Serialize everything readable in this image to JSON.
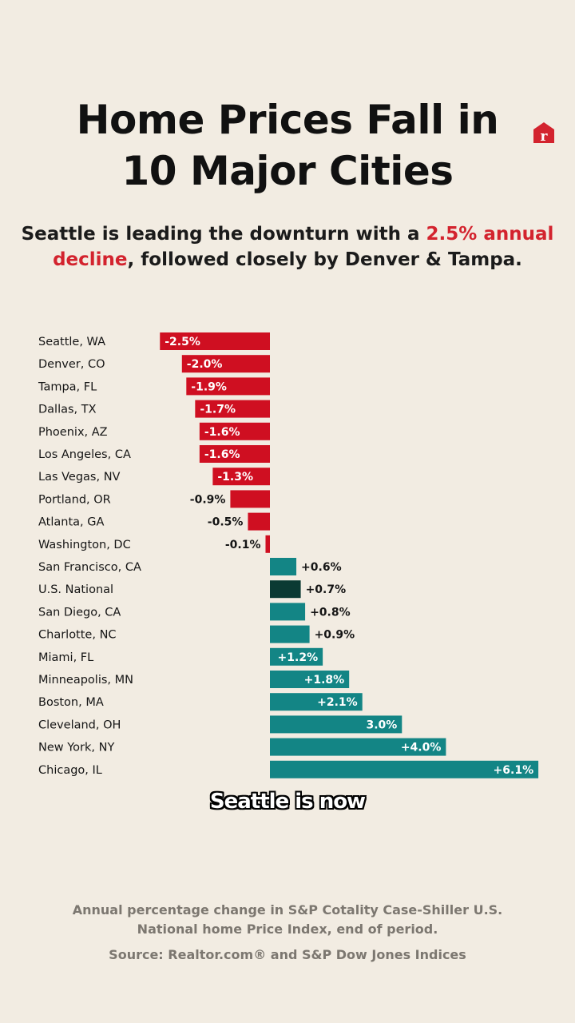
{
  "title": [
    "Home Prices Fall in",
    "10 Major Cities"
  ],
  "subtitle": {
    "before": "Seattle is leading the downturn with a ",
    "highlight": "2.5% annual decline",
    "after": ", followed closely by Denver & Tampa."
  },
  "logo_icon": "realtor-r-icon",
  "caption": "Seattle is now",
  "footnote": "Annual percentage change in S&P Cotality Case-Shiller U.S. National home Price Index, end of period.",
  "source": "Source: Realtor.com® and S&P Dow Jones Indices",
  "colors": {
    "negative": "#cf0f21",
    "positive": "#138585",
    "national": "#0b3a33",
    "highlight": "#d3232e"
  },
  "chart_data": {
    "type": "bar",
    "orientation": "horizontal",
    "categories": [
      "Seattle, WA",
      "Denver, CO",
      "Tampa, FL",
      "Dallas, TX",
      "Phoenix, AZ",
      "Los Angeles, CA",
      "Las Vegas, NV",
      "Portland, OR",
      "Atlanta, GA",
      "Washington, DC",
      "San Francisco, CA",
      "U.S. National",
      "San Diego, CA",
      "Charlotte, NC",
      "Miami, FL",
      "Minneapolis, MN",
      "Boston, MA",
      "Cleveland, OH",
      "New York, NY",
      "Chicago, IL"
    ],
    "values": [
      -2.5,
      -2.0,
      -1.9,
      -1.7,
      -1.6,
      -1.6,
      -1.3,
      -0.9,
      -0.5,
      -0.1,
      0.6,
      0.7,
      0.8,
      0.9,
      1.2,
      1.8,
      2.1,
      3.0,
      4.0,
      6.1
    ],
    "data_labels": [
      "-2.5%",
      "-2.0%",
      "-1.9%",
      "-1.7%",
      "-1.6%",
      "-1.6%",
      "-1.3%",
      "-0.9%",
      "-0.5%",
      "-0.1%",
      "+0.6%",
      "+0.7%",
      "+0.8%",
      "+0.9%",
      "+1.2%",
      "+1.8%",
      "+2.1%",
      "3.0%",
      "+4.0%",
      "+6.1%"
    ],
    "grid": false,
    "legend": "none"
  }
}
